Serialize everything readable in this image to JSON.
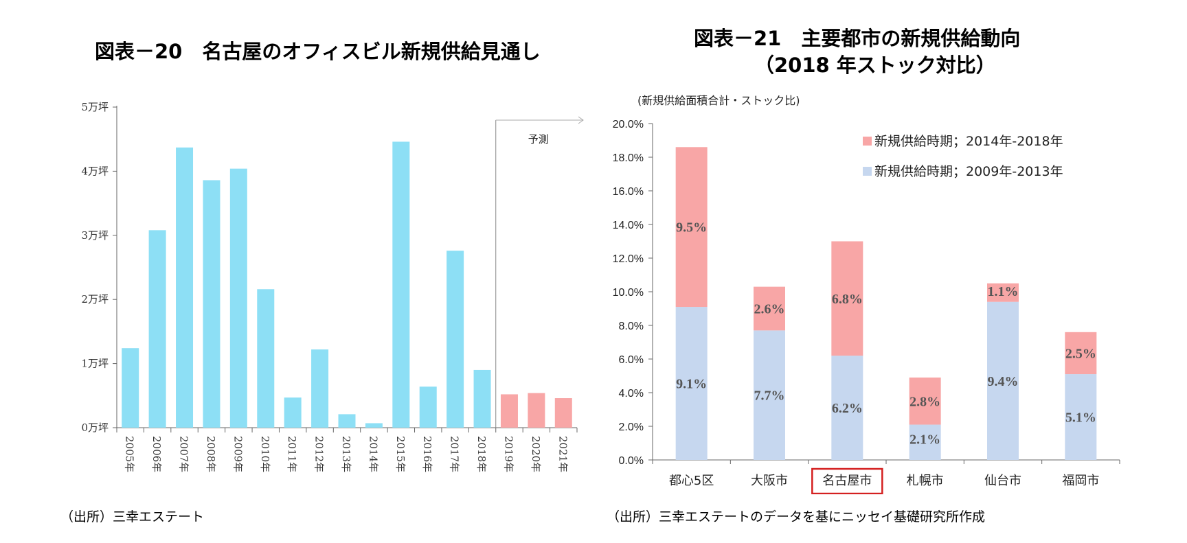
{
  "chart_data": [
    {
      "type": "bar",
      "title": "図表－20　名古屋のオフィスビル新規供給見通し",
      "source": "（出所）三幸エステート",
      "y_unit": "万坪",
      "y_ticks": [
        "0万坪",
        "1万坪",
        "2万坪",
        "3万坪",
        "4万坪",
        "5万坪"
      ],
      "ylim": [
        0,
        5
      ],
      "categories": [
        "2005年",
        "2006年",
        "2007年",
        "2008年",
        "2009年",
        "2010年",
        "2011年",
        "2012年",
        "2013年",
        "2014年",
        "2015年",
        "2016年",
        "2017年",
        "2018年",
        "2019年",
        "2020年",
        "2021年"
      ],
      "values": [
        1.24,
        3.08,
        4.37,
        3.86,
        4.04,
        2.16,
        0.47,
        1.22,
        0.21,
        0.07,
        4.46,
        0.64,
        2.76,
        0.9,
        0.52,
        0.54,
        0.46
      ],
      "forecast_from_index": 14,
      "forecast_label": "予測",
      "colors": {
        "actual": "#8ddff5",
        "forecast": "#f8a6a6"
      }
    },
    {
      "type": "bar",
      "stacked": true,
      "title_line1": "図表－21　主要都市の新規供給動向",
      "title_line2": "（2018 年ストック対比）",
      "source": "（出所）三幸エステートのデータを基にニッセイ基礎研究所作成",
      "ylabel": "(新規供給面積合計・ストック比)",
      "y_ticks": [
        "0.0%",
        "2.0%",
        "4.0%",
        "6.0%",
        "8.0%",
        "10.0%",
        "12.0%",
        "14.0%",
        "16.0%",
        "18.0%",
        "20.0%"
      ],
      "ylim": [
        0,
        20
      ],
      "categories": [
        "都心5区",
        "大阪市",
        "名古屋市",
        "札幌市",
        "仙台市",
        "福岡市"
      ],
      "highlight_category": "名古屋市",
      "series": [
        {
          "name": "新規供給時期；2009年-2013年",
          "color": "#c6d7ef",
          "values": [
            9.1,
            7.7,
            6.2,
            2.1,
            9.4,
            5.1
          ],
          "labels": [
            "9.1%",
            "7.7%",
            "6.2%",
            "2.1%",
            "9.4%",
            "5.1%"
          ]
        },
        {
          "name": "新規供給時期；2014年-2018年",
          "color": "#f8a6a6",
          "values": [
            9.5,
            2.6,
            6.8,
            2.8,
            1.1,
            2.5
          ],
          "labels": [
            "9.5%",
            "2.6%",
            "6.8%",
            "2.8%",
            "1.1%",
            "2.5%"
          ]
        }
      ]
    }
  ]
}
